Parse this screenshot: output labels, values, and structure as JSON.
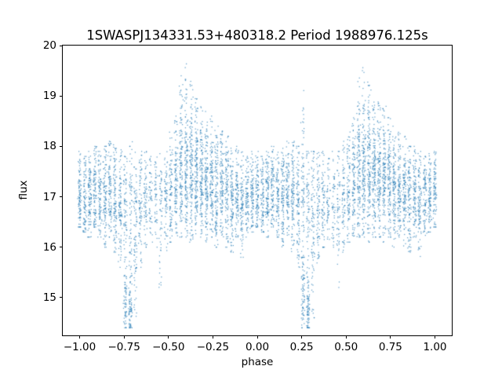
{
  "chart_data": {
    "type": "scatter",
    "title": "1SWASPJ134331.53+480318.2 Period 1988976.125s",
    "xlabel": "phase",
    "ylabel": "flux",
    "xlim": [
      -1.095,
      1.095
    ],
    "ylim": [
      14.25,
      20.0
    ],
    "xticks": [
      -1.0,
      -0.75,
      -0.5,
      -0.25,
      0.0,
      0.25,
      0.5,
      0.75,
      1.0
    ],
    "xtick_labels": [
      "−1.00",
      "−0.75",
      "−0.50",
      "−0.25",
      "0.00",
      "0.25",
      "0.50",
      "0.75",
      "1.00"
    ],
    "yticks": [
      15,
      16,
      17,
      18,
      19,
      20
    ],
    "ytick_labels": [
      "15",
      "16",
      "17",
      "18",
      "19",
      "20"
    ],
    "grid": false,
    "legend": null,
    "marker_color": "#1f77b4",
    "marker_alpha": 0.7,
    "marker_size_px": 1.25,
    "seed": 7,
    "cluster_fields": [
      "phase",
      "flux_min",
      "flux_max",
      "flux_core",
      "flux_sigma",
      "n_points"
    ],
    "clusters": [
      [
        -1.0,
        16.4,
        17.9,
        17.0,
        0.4,
        100
      ],
      [
        -0.971,
        16.3,
        17.8,
        16.9,
        0.4,
        90
      ],
      [
        -0.943,
        16.2,
        17.9,
        17.0,
        0.42,
        110
      ],
      [
        -0.914,
        16.4,
        18.0,
        17.1,
        0.4,
        100
      ],
      [
        -0.886,
        16.2,
        17.9,
        17.0,
        0.4,
        95
      ],
      [
        -0.857,
        16.0,
        18.0,
        17.0,
        0.45,
        110
      ],
      [
        -0.829,
        16.2,
        18.1,
        17.1,
        0.42,
        100
      ],
      [
        -0.8,
        15.9,
        18.1,
        17.0,
        0.45,
        110
      ],
      [
        -0.771,
        15.6,
        18.0,
        16.9,
        0.5,
        100
      ],
      [
        -0.743,
        14.4,
        15.8,
        14.9,
        0.35,
        70
      ],
      [
        -0.743,
        15.8,
        17.8,
        16.8,
        0.5,
        70
      ],
      [
        -0.714,
        14.4,
        15.6,
        14.8,
        0.3,
        80
      ],
      [
        -0.714,
        15.6,
        18.1,
        16.9,
        0.5,
        60
      ],
      [
        -0.686,
        14.6,
        17.9,
        16.5,
        0.8,
        90
      ],
      [
        -0.657,
        15.6,
        17.9,
        16.8,
        0.5,
        80
      ],
      [
        -0.629,
        16.0,
        17.9,
        16.9,
        0.45,
        70
      ],
      [
        -0.6,
        16.1,
        17.8,
        16.9,
        0.4,
        55
      ],
      [
        -0.571,
        16.0,
        17.9,
        16.9,
        0.45,
        50
      ],
      [
        -0.543,
        15.2,
        17.9,
        16.8,
        0.55,
        60
      ],
      [
        -0.514,
        15.9,
        18.1,
        17.0,
        0.5,
        70
      ],
      [
        -0.486,
        16.1,
        18.3,
        17.1,
        0.5,
        90
      ],
      [
        -0.457,
        16.2,
        18.6,
        17.3,
        0.55,
        110
      ],
      [
        -0.429,
        16.2,
        19.4,
        17.4,
        0.6,
        140
      ],
      [
        -0.4,
        16.2,
        19.75,
        17.5,
        0.6,
        150
      ],
      [
        -0.371,
        16.1,
        19.3,
        17.5,
        0.6,
        150
      ],
      [
        -0.343,
        16.2,
        19.0,
        17.5,
        0.55,
        150
      ],
      [
        -0.314,
        16.2,
        18.9,
        17.4,
        0.55,
        140
      ],
      [
        -0.286,
        16.1,
        18.8,
        17.4,
        0.5,
        140
      ],
      [
        -0.257,
        16.2,
        18.6,
        17.3,
        0.5,
        130
      ],
      [
        -0.229,
        16.0,
        18.4,
        17.2,
        0.5,
        120
      ],
      [
        -0.2,
        16.2,
        18.3,
        17.2,
        0.45,
        120
      ],
      [
        -0.171,
        16.0,
        18.2,
        17.1,
        0.45,
        110
      ],
      [
        -0.143,
        15.9,
        18.0,
        17.0,
        0.45,
        110
      ],
      [
        -0.114,
        16.2,
        18.0,
        17.0,
        0.4,
        100
      ],
      [
        -0.086,
        15.8,
        17.9,
        16.9,
        0.45,
        100
      ],
      [
        -0.057,
        16.2,
        17.8,
        16.9,
        0.4,
        95
      ],
      [
        -0.029,
        16.3,
        17.9,
        17.0,
        0.4,
        95
      ],
      [
        0.0,
        16.4,
        17.9,
        17.0,
        0.4,
        100
      ],
      [
        0.029,
        16.3,
        17.8,
        16.9,
        0.4,
        90
      ],
      [
        0.057,
        16.2,
        17.9,
        17.0,
        0.42,
        110
      ],
      [
        0.086,
        16.4,
        18.0,
        17.1,
        0.4,
        100
      ],
      [
        0.114,
        16.2,
        17.9,
        17.0,
        0.4,
        95
      ],
      [
        0.143,
        16.0,
        18.0,
        17.0,
        0.45,
        110
      ],
      [
        0.171,
        16.2,
        18.1,
        17.1,
        0.42,
        100
      ],
      [
        0.2,
        15.9,
        18.1,
        17.0,
        0.45,
        110
      ],
      [
        0.229,
        15.6,
        18.0,
        16.9,
        0.5,
        100
      ],
      [
        0.257,
        14.4,
        15.8,
        14.9,
        0.35,
        70
      ],
      [
        0.257,
        15.8,
        19.2,
        17.0,
        0.7,
        80
      ],
      [
        0.286,
        14.4,
        15.6,
        14.8,
        0.3,
        80
      ],
      [
        0.286,
        15.6,
        17.9,
        16.9,
        0.5,
        60
      ],
      [
        0.314,
        14.6,
        17.9,
        16.5,
        0.8,
        90
      ],
      [
        0.343,
        15.6,
        17.9,
        16.8,
        0.5,
        80
      ],
      [
        0.371,
        16.0,
        17.9,
        16.9,
        0.45,
        70
      ],
      [
        0.4,
        16.1,
        17.8,
        16.9,
        0.4,
        55
      ],
      [
        0.429,
        16.0,
        17.9,
        16.9,
        0.45,
        50
      ],
      [
        0.457,
        15.2,
        17.9,
        16.8,
        0.55,
        60
      ],
      [
        0.486,
        15.9,
        18.1,
        17.0,
        0.5,
        70
      ],
      [
        0.514,
        16.1,
        18.3,
        17.1,
        0.5,
        90
      ],
      [
        0.543,
        16.2,
        18.6,
        17.3,
        0.55,
        110
      ],
      [
        0.571,
        16.2,
        19.4,
        17.4,
        0.6,
        140
      ],
      [
        0.6,
        16.2,
        19.6,
        17.5,
        0.6,
        150
      ],
      [
        0.629,
        16.1,
        19.3,
        17.5,
        0.6,
        150
      ],
      [
        0.657,
        16.2,
        19.0,
        17.5,
        0.55,
        150
      ],
      [
        0.686,
        16.2,
        18.9,
        17.4,
        0.55,
        140
      ],
      [
        0.714,
        16.1,
        18.8,
        17.4,
        0.5,
        140
      ],
      [
        0.743,
        16.2,
        18.6,
        17.3,
        0.5,
        130
      ],
      [
        0.771,
        16.0,
        18.4,
        17.2,
        0.5,
        120
      ],
      [
        0.8,
        16.2,
        18.3,
        17.2,
        0.45,
        120
      ],
      [
        0.829,
        16.0,
        18.2,
        17.1,
        0.45,
        110
      ],
      [
        0.857,
        15.9,
        18.0,
        17.0,
        0.45,
        110
      ],
      [
        0.886,
        16.2,
        18.0,
        17.0,
        0.4,
        100
      ],
      [
        0.914,
        15.8,
        17.9,
        16.9,
        0.45,
        100
      ],
      [
        0.943,
        16.2,
        17.8,
        16.9,
        0.4,
        95
      ],
      [
        0.971,
        16.3,
        17.9,
        17.0,
        0.4,
        95
      ],
      [
        1.0,
        16.4,
        17.9,
        17.0,
        0.4,
        90
      ]
    ]
  }
}
